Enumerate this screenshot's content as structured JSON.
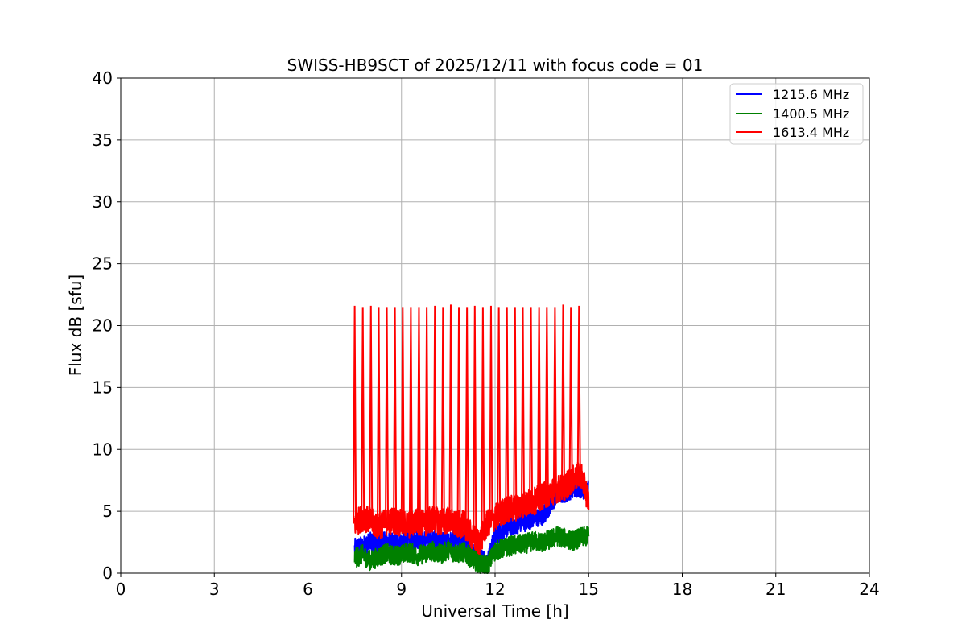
{
  "chart_data": {
    "type": "line",
    "title": "SWISS-HB9SCT of 2025/12/11 with focus code = 01",
    "xlabel": "Universal Time [h]",
    "ylabel": "Flux dB [sfu]",
    "xlim": [
      0,
      24
    ],
    "ylim": [
      0,
      40
    ],
    "xticks": [
      0,
      3,
      6,
      9,
      12,
      15,
      18,
      21,
      24
    ],
    "yticks": [
      0,
      5,
      10,
      15,
      20,
      25,
      30,
      35,
      40
    ],
    "grid": true,
    "legend_position": "top-right",
    "series": [
      {
        "name": "1215.6 MHz",
        "color": "#0000ff",
        "x": [
          7.5,
          7.75,
          8.0,
          8.25,
          8.5,
          8.75,
          9.0,
          9.25,
          9.5,
          9.75,
          10.0,
          10.25,
          10.5,
          10.75,
          11.0,
          11.25,
          11.5,
          11.75,
          12.0,
          12.25,
          12.5,
          12.75,
          13.0,
          13.25,
          13.5,
          13.75,
          14.0,
          14.25,
          14.5,
          14.75,
          15.0
        ],
        "values": [
          2.0,
          2.2,
          2.5,
          2.3,
          2.6,
          2.4,
          2.5,
          2.6,
          2.8,
          2.7,
          2.6,
          2.8,
          2.5,
          2.7,
          2.6,
          1.8,
          1.5,
          0.8,
          3.0,
          3.5,
          3.8,
          4.0,
          4.2,
          4.5,
          4.5,
          5.5,
          6.5,
          6.5,
          6.8,
          6.8,
          6.8
        ]
      },
      {
        "name": "1400.5 MHz",
        "color": "#008000",
        "x": [
          7.5,
          7.75,
          8.0,
          8.25,
          8.5,
          8.75,
          9.0,
          9.25,
          9.5,
          9.75,
          10.0,
          10.25,
          10.5,
          10.75,
          11.0,
          11.25,
          11.5,
          11.75,
          12.0,
          12.25,
          12.5,
          12.75,
          13.0,
          13.25,
          13.5,
          13.75,
          14.0,
          14.25,
          14.5,
          14.75,
          15.0
        ],
        "values": [
          1.2,
          1.5,
          1.0,
          1.3,
          1.6,
          1.4,
          1.5,
          1.7,
          1.4,
          1.6,
          1.8,
          1.5,
          1.9,
          1.6,
          1.7,
          1.2,
          0.8,
          0.6,
          1.8,
          2.0,
          2.2,
          2.3,
          2.4,
          2.6,
          2.5,
          2.7,
          3.0,
          2.8,
          2.6,
          2.9,
          3.0
        ]
      },
      {
        "name": "1613.4 MHz",
        "color": "#ff0000",
        "x": [
          7.5,
          7.75,
          8.0,
          8.25,
          8.5,
          8.75,
          9.0,
          9.25,
          9.5,
          9.75,
          10.0,
          10.25,
          10.5,
          10.75,
          11.0,
          11.25,
          11.5,
          11.75,
          12.0,
          12.25,
          12.5,
          12.75,
          13.0,
          13.25,
          13.5,
          13.75,
          14.0,
          14.25,
          14.5,
          14.75,
          15.0
        ],
        "values": [
          4.0,
          4.5,
          4.2,
          3.8,
          4.1,
          4.3,
          4.0,
          3.9,
          4.2,
          4.0,
          4.4,
          4.1,
          4.3,
          3.9,
          4.0,
          3.0,
          2.5,
          4.0,
          4.5,
          5.0,
          5.2,
          5.4,
          5.6,
          5.8,
          6.2,
          6.5,
          6.8,
          7.0,
          7.6,
          8.0,
          5.8
        ]
      }
    ],
    "spikes": {
      "series": "1613.4 MHz",
      "baseline": 4.0,
      "peak": 21.5,
      "x": [
        7.5,
        7.76,
        8.02,
        8.27,
        8.53,
        8.79,
        9.04,
        9.3,
        9.56,
        9.81,
        10.07,
        10.33,
        10.58,
        10.84,
        11.1,
        11.35,
        11.61,
        11.87,
        12.12,
        12.38,
        12.64,
        12.89,
        13.15,
        13.41,
        13.66,
        13.92,
        14.18,
        14.43,
        14.69
      ],
      "values": [
        21.6,
        21.5,
        21.6,
        21.5,
        21.5,
        21.5,
        21.5,
        21.5,
        21.5,
        21.5,
        21.6,
        21.5,
        21.7,
        21.5,
        21.5,
        21.6,
        21.5,
        21.6,
        21.5,
        21.5,
        21.5,
        21.5,
        21.5,
        21.5,
        21.5,
        21.5,
        21.7,
        21.5,
        21.6
      ]
    }
  }
}
